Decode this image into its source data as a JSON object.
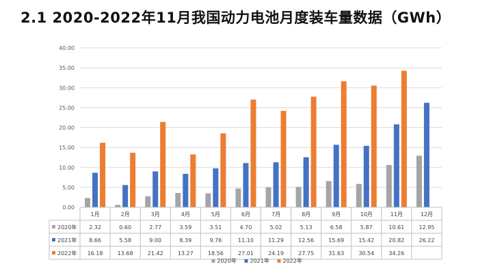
{
  "page": {
    "title": "2.1 2020-2022年11月我国动力电池月度装车量数据（GWh）"
  },
  "chart_data": {
    "type": "bar",
    "title": "",
    "xlabel": "",
    "ylabel": "",
    "ylim": [
      0,
      40
    ],
    "yticks": [
      "0.00",
      "5.00",
      "10.00",
      "15.00",
      "20.00",
      "25.00",
      "30.00",
      "35.00",
      "40.00"
    ],
    "grid": true,
    "legend_position": "bottom",
    "categories": [
      "1月",
      "2月",
      "3月",
      "4月",
      "5月",
      "6月",
      "7月",
      "8月",
      "9月",
      "10月",
      "11月",
      "12月"
    ],
    "series": [
      {
        "name": "2020年",
        "color": "#a5a5a5",
        "values": [
          2.32,
          0.6,
          2.77,
          3.59,
          3.51,
          4.7,
          5.02,
          5.13,
          6.58,
          5.87,
          10.61,
          12.95
        ],
        "labels": [
          "2.32",
          "0.60",
          "2.77",
          "3.59",
          "3.51",
          "4.70",
          "5.02",
          "5.13",
          "6.58",
          "5.87",
          "10.61",
          "12.95"
        ]
      },
      {
        "name": "2021年",
        "color": "#4472c4",
        "values": [
          8.66,
          5.58,
          9.0,
          8.39,
          9.76,
          11.1,
          11.29,
          12.56,
          15.69,
          15.42,
          20.82,
          26.22
        ],
        "labels": [
          "8.66",
          "5.58",
          "9.00",
          "8.39",
          "9.76",
          "11.10",
          "11.29",
          "12.56",
          "15.69",
          "15.42",
          "20.82",
          "26.22"
        ]
      },
      {
        "name": "2022年",
        "color": "#ed7d31",
        "values": [
          16.18,
          13.68,
          21.42,
          13.27,
          18.56,
          27.01,
          24.19,
          27.75,
          31.63,
          30.54,
          34.26,
          null
        ],
        "labels": [
          "16.18",
          "13.68",
          "21.42",
          "13.27",
          "18.56",
          "27.01",
          "24.19",
          "27.75",
          "31.63",
          "30.54",
          "34.26",
          ""
        ]
      }
    ]
  }
}
